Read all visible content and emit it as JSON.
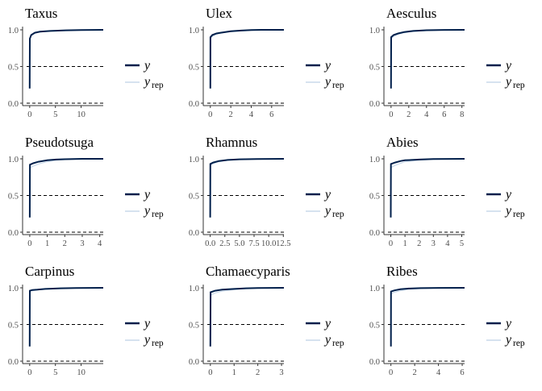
{
  "colors": {
    "y": "#011f4b",
    "yrep": "#c9d9ea",
    "ref": "#000000"
  },
  "legend": {
    "y_label": "y",
    "yrep_label": "y",
    "yrep_sub": "rep"
  },
  "chart_data": [
    {
      "type": "line",
      "title": "Taxus",
      "xlim": [
        -0.6,
        14.3
      ],
      "ylim": [
        0,
        1
      ],
      "xticks": [
        0,
        5,
        10
      ],
      "xtick_labels": [
        "0",
        "5",
        "10"
      ],
      "yticks": [
        0,
        0.5,
        1
      ],
      "ytick_labels": [
        "0.0",
        "0.5",
        "1.0"
      ],
      "ref_lines": [
        0,
        0.5
      ],
      "series": [
        {
          "x": [
            0,
            0.02,
            0.3,
            1,
            2,
            4,
            7,
            10,
            14.3
          ],
          "y": [
            0.2,
            0.88,
            0.93,
            0.96,
            0.975,
            0.985,
            0.993,
            0.998,
            1.0
          ]
        },
        {
          "x": [
            0,
            0.02,
            0.3,
            1,
            2,
            4,
            7,
            10,
            14.3
          ],
          "y": [
            0.2,
            0.87,
            0.92,
            0.955,
            0.97,
            0.985,
            0.993,
            0.998,
            1.0
          ]
        }
      ]
    },
    {
      "type": "line",
      "title": "Ulex",
      "xlim": [
        -0.3,
        7.2
      ],
      "ylim": [
        0,
        1
      ],
      "xticks": [
        0,
        2,
        4,
        6
      ],
      "xtick_labels": [
        "0",
        "2",
        "4",
        "6"
      ],
      "yticks": [
        0,
        0.5,
        1
      ],
      "ytick_labels": [
        "0.0",
        "0.5",
        "1.0"
      ],
      "ref_lines": [
        0,
        0.5
      ],
      "series": [
        {
          "x": [
            0,
            0.01,
            0.2,
            0.6,
            1,
            2,
            3,
            4,
            5,
            7.2
          ],
          "y": [
            0.2,
            0.9,
            0.93,
            0.95,
            0.96,
            0.98,
            0.99,
            0.997,
            1.0,
            1.0
          ]
        },
        {
          "x": [
            0,
            0.01,
            0.2,
            0.6,
            1,
            2,
            3,
            4,
            5,
            7.2
          ],
          "y": [
            0.2,
            0.88,
            0.91,
            0.94,
            0.955,
            0.975,
            0.985,
            0.995,
            0.999,
            1.0
          ]
        }
      ]
    },
    {
      "type": "line",
      "title": "Aesculus",
      "xlim": [
        -0.35,
        8.3
      ],
      "ylim": [
        0,
        1
      ],
      "xticks": [
        0,
        2,
        4,
        6,
        8
      ],
      "xtick_labels": [
        "0",
        "2",
        "4",
        "6",
        "8"
      ],
      "yticks": [
        0,
        0.5,
        1
      ],
      "ytick_labels": [
        "0.0",
        "0.5",
        "1.0"
      ],
      "ref_lines": [
        0,
        0.5
      ],
      "series": [
        {
          "x": [
            0,
            0.01,
            0.3,
            0.8,
            1.5,
            2.5,
            4,
            6,
            8.3
          ],
          "y": [
            0.2,
            0.9,
            0.93,
            0.95,
            0.97,
            0.985,
            0.995,
            0.999,
            1.0
          ]
        },
        {
          "x": [
            0,
            0.01,
            0.3,
            0.8,
            1.5,
            2.5,
            4,
            6,
            8.3
          ],
          "y": [
            0.2,
            0.88,
            0.91,
            0.94,
            0.96,
            0.978,
            0.99,
            0.998,
            1.0
          ]
        }
      ]
    },
    {
      "type": "line",
      "title": "Pseudotsuga",
      "xlim": [
        -0.18,
        4.2
      ],
      "ylim": [
        0,
        1
      ],
      "xticks": [
        0,
        1,
        2,
        3,
        4
      ],
      "xtick_labels": [
        "0",
        "1",
        "2",
        "3",
        "4"
      ],
      "yticks": [
        0,
        0.5,
        1
      ],
      "ytick_labels": [
        "0.0",
        "0.5",
        "1.0"
      ],
      "ref_lines": [
        0,
        0.5
      ],
      "series": [
        {
          "x": [
            0,
            0.01,
            0.2,
            0.5,
            1,
            1.5,
            2,
            3,
            4.2
          ],
          "y": [
            0.2,
            0.92,
            0.94,
            0.96,
            0.98,
            0.99,
            0.995,
            1.0,
            1.0
          ]
        },
        {
          "x": [
            0,
            0.01,
            0.2,
            0.5,
            1,
            1.5,
            2,
            3,
            4.2
          ],
          "y": [
            0.2,
            0.88,
            0.9,
            0.93,
            0.96,
            0.98,
            0.99,
            0.998,
            1.0
          ]
        }
      ]
    },
    {
      "type": "line",
      "title": "Rhamnus",
      "xlim": [
        -0.5,
        12.6
      ],
      "ylim": [
        0,
        1
      ],
      "xticks": [
        0,
        2.5,
        5,
        7.5,
        10,
        12.5
      ],
      "xtick_labels": [
        "0.0",
        "2.5",
        "5.0",
        "7.5",
        "10.0",
        "12.5"
      ],
      "yticks": [
        0,
        0.5,
        1
      ],
      "ytick_labels": [
        "0.0",
        "0.5",
        "1.0"
      ],
      "ref_lines": [
        0,
        0.5
      ],
      "series": [
        {
          "x": [
            0,
            0.02,
            0.5,
            1.5,
            3,
            5,
            8,
            12.6
          ],
          "y": [
            0.2,
            0.93,
            0.95,
            0.97,
            0.985,
            0.993,
            0.998,
            1.0
          ]
        },
        {
          "x": [
            0,
            0.02,
            0.5,
            1.5,
            3,
            5,
            8,
            12.6
          ],
          "y": [
            0.2,
            0.91,
            0.935,
            0.96,
            0.98,
            0.99,
            0.997,
            1.0
          ]
        }
      ]
    },
    {
      "type": "line",
      "title": "Abies",
      "xlim": [
        -0.2,
        5.2
      ],
      "ylim": [
        0,
        1
      ],
      "xticks": [
        0,
        1,
        2,
        3,
        4,
        5
      ],
      "xtick_labels": [
        "0",
        "1",
        "2",
        "3",
        "4",
        "5"
      ],
      "yticks": [
        0,
        0.5,
        1
      ],
      "ytick_labels": [
        "0.0",
        "0.5",
        "1.0"
      ],
      "ref_lines": [
        0,
        0.5
      ],
      "series": [
        {
          "x": [
            0,
            0.01,
            0.3,
            0.7,
            1,
            2,
            3,
            5.2
          ],
          "y": [
            0.2,
            0.93,
            0.95,
            0.97,
            0.98,
            0.99,
            0.997,
            1.0
          ]
        },
        {
          "x": [
            0,
            0.01,
            0.3,
            0.7,
            1,
            2,
            3,
            5.2
          ],
          "y": [
            0.2,
            0.88,
            0.91,
            0.94,
            0.96,
            0.98,
            0.993,
            1.0
          ]
        }
      ]
    },
    {
      "type": "line",
      "title": "Carpinus",
      "xlim": [
        -0.6,
        14.3
      ],
      "ylim": [
        0,
        1
      ],
      "xticks": [
        0,
        5,
        10
      ],
      "xtick_labels": [
        "0",
        "5",
        "10"
      ],
      "yticks": [
        0,
        0.5,
        1
      ],
      "ytick_labels": [
        "0.0",
        "0.5",
        "1.0"
      ],
      "ref_lines": [
        0,
        0.5
      ],
      "series": [
        {
          "x": [
            0,
            0.02,
            0.5,
            1.5,
            3,
            6,
            9,
            14.3
          ],
          "y": [
            0.2,
            0.96,
            0.97,
            0.975,
            0.985,
            0.993,
            0.998,
            1.0
          ]
        },
        {
          "x": [
            0,
            0.02,
            0.5,
            1.5,
            3,
            6,
            9,
            14.3
          ],
          "y": [
            0.2,
            0.95,
            0.96,
            0.97,
            0.98,
            0.99,
            0.997,
            1.0
          ]
        }
      ]
    },
    {
      "type": "line",
      "title": "Chamaecyparis",
      "xlim": [
        -0.13,
        3.1
      ],
      "ylim": [
        0,
        1
      ],
      "xticks": [
        0,
        1,
        2,
        3
      ],
      "xtick_labels": [
        "0",
        "1",
        "2",
        "3"
      ],
      "yticks": [
        0,
        0.5,
        1
      ],
      "ytick_labels": [
        "0.0",
        "0.5",
        "1.0"
      ],
      "ref_lines": [
        0,
        0.5
      ],
      "series": [
        {
          "x": [
            0,
            0.01,
            0.2,
            0.5,
            1,
            1.5,
            2,
            3.1
          ],
          "y": [
            0.2,
            0.94,
            0.96,
            0.975,
            0.985,
            0.993,
            0.998,
            1.0
          ]
        },
        {
          "x": [
            0,
            0.01,
            0.2,
            0.5,
            1,
            1.5,
            2,
            3.1
          ],
          "y": [
            0.2,
            0.9,
            0.93,
            0.955,
            0.975,
            0.99,
            0.997,
            1.0
          ]
        }
      ]
    },
    {
      "type": "line",
      "title": "Ribes",
      "xlim": [
        -0.25,
        6.2
      ],
      "ylim": [
        0,
        1
      ],
      "xticks": [
        0,
        2,
        4,
        6
      ],
      "xtick_labels": [
        "0",
        "2",
        "4",
        "6"
      ],
      "yticks": [
        0,
        0.5,
        1
      ],
      "ytick_labels": [
        "0.0",
        "0.5",
        "1.0"
      ],
      "ref_lines": [
        0,
        0.5
      ],
      "series": [
        {
          "x": [
            0,
            0.01,
            0.3,
            0.8,
            1.5,
            2.5,
            4,
            6.2
          ],
          "y": [
            0.2,
            0.95,
            0.965,
            0.98,
            0.99,
            0.996,
            0.999,
            1.0
          ]
        },
        {
          "x": [
            0,
            0.01,
            0.3,
            0.8,
            1.5,
            2.5,
            4,
            6.2
          ],
          "y": [
            0.2,
            0.92,
            0.94,
            0.96,
            0.98,
            0.99,
            0.997,
            1.0
          ]
        }
      ]
    }
  ]
}
